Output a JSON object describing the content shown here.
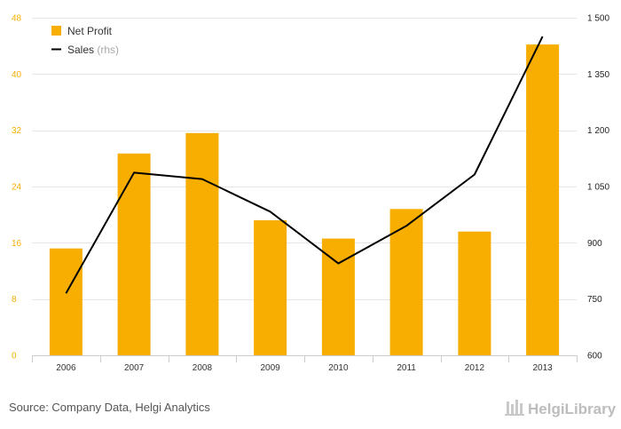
{
  "chart_data": {
    "type": "bar",
    "categories": [
      "2006",
      "2007",
      "2008",
      "2009",
      "2010",
      "2011",
      "2012",
      "2013"
    ],
    "series": [
      {
        "name": "Net Profit",
        "type": "bar",
        "axis": "left",
        "values": [
          15.2,
          28.7,
          31.6,
          19.2,
          16.6,
          20.8,
          17.6,
          44.2
        ]
      },
      {
        "name": "Sales",
        "type": "line",
        "axis": "right",
        "values": [
          765,
          1087,
          1070,
          983,
          845,
          945,
          1082,
          1450
        ]
      }
    ],
    "legend": {
      "position": "top-left",
      "items": [
        {
          "label": "Net Profit",
          "suffix": ""
        },
        {
          "label": "Sales",
          "suffix": " (rhs)"
        }
      ]
    },
    "y_left": {
      "ticks": [
        "0",
        "8",
        "16",
        "24",
        "32",
        "40",
        "48"
      ],
      "values": [
        0,
        8,
        16,
        24,
        32,
        40,
        48
      ],
      "range": [
        0,
        48
      ]
    },
    "y_right": {
      "ticks": [
        "600",
        "750",
        "900",
        "1 050",
        "1 200",
        "1 350",
        "1 500"
      ],
      "values": [
        600,
        750,
        900,
        1050,
        1200,
        1350,
        1500
      ],
      "range": [
        600,
        1500
      ]
    },
    "grid": true,
    "colors": {
      "bar": "#f7ae00",
      "line": "#000000",
      "left_tick": "#f7ae00",
      "right_tick": "#222222",
      "grid": "#e6e6e6"
    }
  },
  "footer": {
    "source": "Source: Company Data, Helgi Analytics",
    "brand": "HelgiLibrary"
  }
}
